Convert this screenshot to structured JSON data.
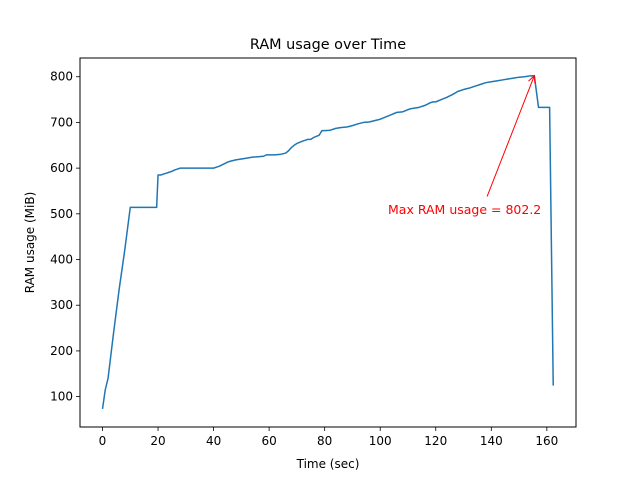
{
  "chart_data": {
    "type": "line",
    "title": "RAM usage over Time",
    "xlabel": "Time (sec)",
    "ylabel": "RAM usage (MiB)",
    "xlim": [
      -8.1,
      170.5
    ],
    "ylim": [
      33.5,
      841
    ],
    "xticks": [
      0,
      20,
      40,
      60,
      80,
      100,
      120,
      140,
      160
    ],
    "yticks": [
      100,
      200,
      300,
      400,
      500,
      600,
      700,
      800
    ],
    "grid": false,
    "series": [
      {
        "color": "#1f77b4",
        "x": [
          0,
          1,
          2,
          4,
          6,
          8,
          10,
          12,
          14,
          16,
          18,
          19.5,
          20,
          21,
          22,
          23,
          24,
          25,
          26,
          27,
          28,
          29,
          30,
          32,
          34,
          36,
          38,
          40,
          41,
          42,
          43,
          44,
          45,
          46,
          48,
          50,
          52,
          54,
          56,
          58,
          59,
          60,
          62,
          64,
          66,
          67,
          68,
          69,
          70,
          72,
          74,
          75,
          76,
          78,
          79,
          80,
          82,
          84,
          86,
          88,
          90,
          92,
          94,
          96,
          98,
          100,
          102,
          104,
          106,
          108,
          110,
          111,
          112,
          114,
          116,
          118,
          119,
          120,
          122,
          124,
          126,
          128,
          130,
          132,
          134,
          136,
          138,
          140,
          142,
          144,
          146,
          148,
          150,
          152,
          154,
          155.5,
          157,
          159,
          161,
          162.3
        ],
        "y": [
          73,
          115,
          140,
          240,
          335,
          420,
          514,
          514,
          514,
          514,
          514,
          514,
          585,
          585,
          587,
          589,
          591,
          593,
          596,
          598,
          600,
          600,
          600,
          600,
          600,
          600,
          600,
          600,
          602,
          604,
          607,
          610,
          613,
          615,
          618,
          620,
          622,
          624,
          625,
          626,
          629,
          629,
          629,
          630,
          633,
          638,
          645,
          650,
          654,
          659,
          663,
          663,
          667,
          672,
          682,
          682,
          683,
          687,
          689,
          690,
          693,
          697,
          700,
          701,
          704,
          707,
          712,
          717,
          722,
          723,
          728,
          730,
          731,
          733,
          737,
          743,
          745,
          745,
          750,
          755,
          761,
          768,
          772,
          775,
          779,
          783,
          787,
          789,
          791,
          793,
          795,
          797,
          799,
          800,
          802,
          802.2,
          733,
          733,
          733,
          124
        ]
      }
    ],
    "annotations": [
      {
        "text": "Max RAM usage = 802.2",
        "text_x": 130.4,
        "text_y": 508,
        "arrow_from_x": 138.5,
        "arrow_from_y": 538,
        "arrow_to_x": 155.5,
        "arrow_to_y": 802.2,
        "color": "#ff0000"
      }
    ]
  }
}
